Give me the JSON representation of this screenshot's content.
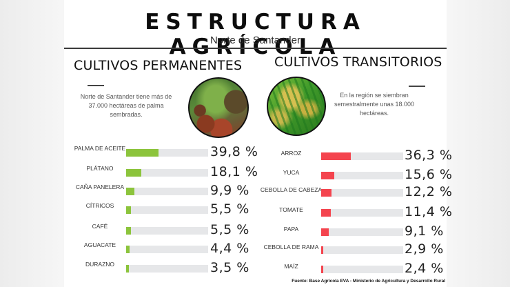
{
  "header": {
    "title": "ESTRUCTURA AGRÍCOLA",
    "subtitle": "Norte de Santander"
  },
  "permanentes": {
    "heading": "CULTIVOS PERMANENTES",
    "blurb": "Norte de Santander tiene más de 37.000 hectáreas de palma sembradas.",
    "image_icon": "oil-palm-photo",
    "color": "#8cc43c"
  },
  "transitorios": {
    "heading": "CULTIVOS TRANSITORIOS",
    "blurb": "En la región se siembran semestralmente unas 18.000 hectáreas.",
    "image_icon": "rice-plant-photo",
    "color": "#f4444e"
  },
  "source": "Fuente: Base Agrícola EVA - Ministerio de Agricultura y Desarrollo Rural",
  "chart_data": [
    {
      "type": "bar",
      "orientation": "horizontal",
      "title": "CULTIVOS PERMANENTES",
      "categories": [
        "PALMA DE ACEITE",
        "PLÁTANO",
        "CAÑA PANELERA",
        "CÍTRICOS",
        "CAFÉ",
        "AGUACATE",
        "DURAZNO"
      ],
      "values": [
        39.8,
        18.1,
        9.9,
        5.5,
        5.5,
        4.4,
        3.5
      ],
      "value_labels": [
        "39,8 %",
        "18,1 %",
        "9,9 %",
        "5,5 %",
        "5,5 %",
        "4,4 %",
        "3,5 %"
      ],
      "unit": "%",
      "xlim": [
        0,
        100
      ],
      "color": "#8cc43c",
      "grid": false,
      "legend": "none"
    },
    {
      "type": "bar",
      "orientation": "horizontal",
      "title": "CULTIVOS TRANSITORIOS",
      "categories": [
        "ARROZ",
        "YUCA",
        "CEBOLLA DE CABEZA",
        "TOMATE",
        "PAPA",
        "CEBOLLA DE RAMA",
        "MAÍZ"
      ],
      "values": [
        36.3,
        15.6,
        12.2,
        11.4,
        9.1,
        2.9,
        2.4
      ],
      "value_labels": [
        "36,3 %",
        "15,6 %",
        "12,2 %",
        "11,4 %",
        "9,1 %",
        "2,9 %",
        "2,4 %"
      ],
      "unit": "%",
      "xlim": [
        0,
        100
      ],
      "color": "#f4444e",
      "grid": false,
      "legend": "none"
    }
  ]
}
